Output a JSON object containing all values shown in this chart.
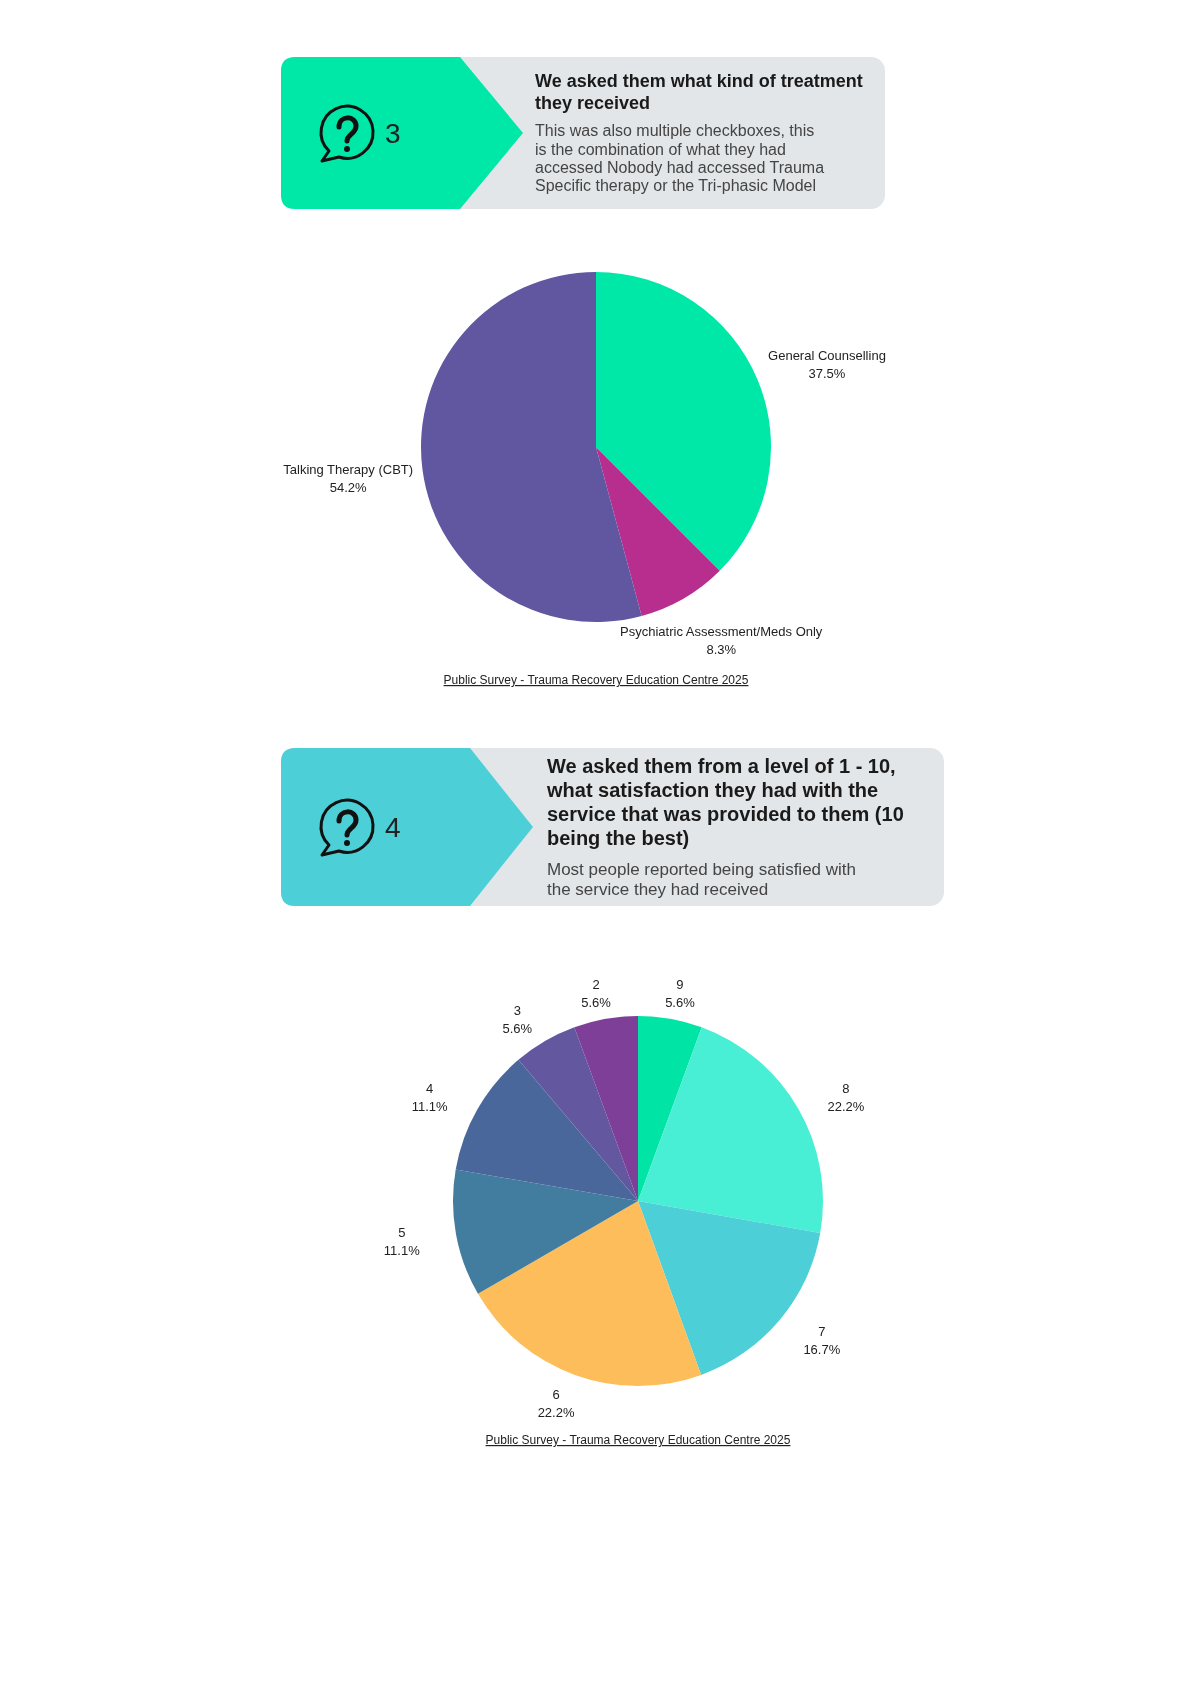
{
  "chart_data": [
    {
      "type": "pie",
      "title": "We asked them what kind of treatment they received",
      "subtitle": "This was also multiple checkboxes, this is the combination of what they had accessed Nobody had accessed Trauma Specific therapy or the Tri-phasic Model",
      "categories": [
        "General Counselling",
        "Psychiatric Assessment/Meds Only",
        "Talking Therapy (CBT)"
      ],
      "values": [
        37.5,
        8.3,
        54.2
      ],
      "colors": [
        "#00e8a8",
        "#b82e8f",
        "#6057a0"
      ],
      "value_labels": [
        "37.5%",
        "8.3%",
        "54.2%"
      ],
      "annotations": [
        "3",
        "Public Survey - Trauma Recovery Education Centre 2025"
      ]
    },
    {
      "type": "pie",
      "title": "We asked them from a level of 1 - 10, what satisfaction they had with the service that was provided to them (10 being the best)",
      "subtitle": "Most people reported being satisfied with the service they had received",
      "categories": [
        "9",
        "8",
        "7",
        "6",
        "5",
        "4",
        "3",
        "2"
      ],
      "values": [
        5.6,
        22.2,
        16.7,
        22.2,
        11.1,
        11.1,
        5.6,
        5.6
      ],
      "colors": [
        "#00e5a5",
        "#48efd5",
        "#4ccfd6",
        "#fdbd5a",
        "#427c9e",
        "#4a679c",
        "#6357a0",
        "#7e3f98"
      ],
      "value_labels": [
        "5.6%",
        "22.2%",
        "16.7%",
        "22.2%",
        "11.1%",
        "11.1%",
        "5.6%",
        "5.6%"
      ],
      "annotations": [
        "4",
        "Public Survey - Trauma Recovery Education Centre 2025"
      ]
    }
  ]
}
